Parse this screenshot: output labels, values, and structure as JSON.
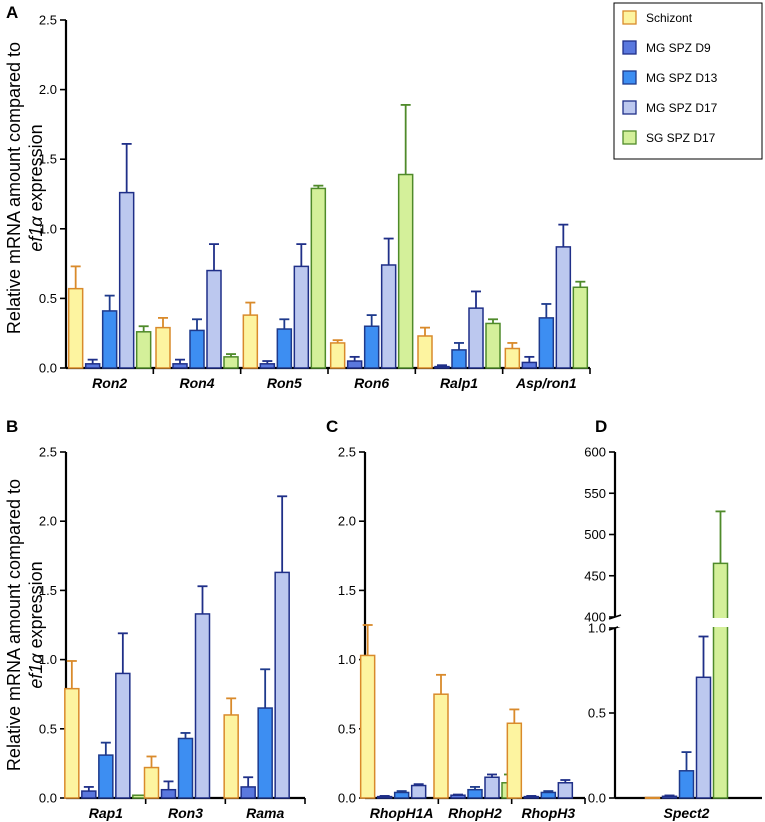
{
  "figure": {
    "ylabel_line1": "Relative mRNA amount compared to",
    "ylabel_line2_italic": "ef1α",
    "ylabel_line2_rest": " expression"
  },
  "legend": [
    {
      "name": "Schizont",
      "fill": "#fdf4a0",
      "stroke": "#d98a2b"
    },
    {
      "name": "MG SPZ D9",
      "fill": "#5a78de",
      "stroke": "#1f2f88"
    },
    {
      "name": "MG SPZ D13",
      "fill": "#3d8ef2",
      "stroke": "#1e3a8c"
    },
    {
      "name": "MG SPZ D17",
      "fill": "#bcc8ef",
      "stroke": "#1f2f88"
    },
    {
      "name": "SG SPZ D17",
      "fill": "#d4f09a",
      "stroke": "#4f8a2a"
    }
  ],
  "chart_data": [
    {
      "panel": "A",
      "type": "bar",
      "categories": [
        "Ron2",
        "Ron4",
        "Ron5",
        "Ron6",
        "Ralp1",
        "Asp/ron1"
      ],
      "ylim": [
        0,
        2.5
      ],
      "yticks": [
        "0.0",
        "0.5",
        "1.0",
        "1.5",
        "2.0",
        "2.5"
      ],
      "series": [
        {
          "name": "Schizont",
          "values": [
            0.57,
            0.29,
            0.38,
            0.18,
            0.23,
            0.14
          ],
          "errors": [
            0.16,
            0.07,
            0.09,
            0.02,
            0.06,
            0.04
          ]
        },
        {
          "name": "MG SPZ D9",
          "values": [
            0.03,
            0.03,
            0.03,
            0.05,
            0.01,
            0.04
          ],
          "errors": [
            0.03,
            0.03,
            0.02,
            0.03,
            0.01,
            0.04
          ]
        },
        {
          "name": "MG SPZ D13",
          "values": [
            0.41,
            0.27,
            0.28,
            0.3,
            0.13,
            0.36
          ],
          "errors": [
            0.11,
            0.08,
            0.07,
            0.08,
            0.05,
            0.1
          ]
        },
        {
          "name": "MG SPZ D17",
          "values": [
            1.26,
            0.7,
            0.73,
            0.74,
            0.43,
            0.87
          ],
          "errors": [
            0.35,
            0.19,
            0.16,
            0.19,
            0.12,
            0.16
          ]
        },
        {
          "name": "SG SPZ D17",
          "values": [
            0.26,
            0.08,
            1.29,
            1.39,
            0.32,
            0.58
          ],
          "errors": [
            0.04,
            0.02,
            0.02,
            0.5,
            0.03,
            0.04
          ]
        }
      ]
    },
    {
      "panel": "B",
      "type": "bar",
      "categories": [
        "Rap1",
        "Ron3",
        "Rama"
      ],
      "ylim": [
        0,
        2.5
      ],
      "yticks": [
        "0.0",
        "0.5",
        "1.0",
        "1.5",
        "2.0",
        "2.5"
      ],
      "series": [
        {
          "name": "Schizont",
          "values": [
            0.79,
            0.22,
            0.6
          ],
          "errors": [
            0.2,
            0.08,
            0.12
          ]
        },
        {
          "name": "MG SPZ D9",
          "values": [
            0.05,
            0.06,
            0.08
          ],
          "errors": [
            0.03,
            0.06,
            0.07
          ]
        },
        {
          "name": "MG SPZ D13",
          "values": [
            0.31,
            0.43,
            0.65
          ],
          "errors": [
            0.09,
            0.04,
            0.28
          ]
        },
        {
          "name": "MG SPZ D17",
          "values": [
            0.9,
            1.33,
            1.63
          ],
          "errors": [
            0.29,
            0.2,
            0.55
          ]
        },
        {
          "name": "SG SPZ D17",
          "values": [
            0.02,
            null,
            null
          ],
          "errors": [
            0,
            null,
            null
          ]
        }
      ]
    },
    {
      "panel": "C",
      "type": "bar",
      "categories": [
        "RhopH1A",
        "RhopH2",
        "RhopH3"
      ],
      "ylim": [
        0,
        2.5
      ],
      "yticks": [
        "0.0",
        "0.5",
        "1.0",
        "1.5",
        "2.0",
        "2.5"
      ],
      "series": [
        {
          "name": "Schizont",
          "values": [
            1.03,
            0.75,
            0.54
          ],
          "errors": [
            0.22,
            0.14,
            0.1
          ]
        },
        {
          "name": "MG SPZ D9",
          "values": [
            0.01,
            0.02,
            0.01
          ],
          "errors": [
            0.005,
            0.005,
            0.005
          ]
        },
        {
          "name": "MG SPZ D13",
          "values": [
            0.04,
            0.06,
            0.04
          ],
          "errors": [
            0.01,
            0.02,
            0.01
          ]
        },
        {
          "name": "MG SPZ D17",
          "values": [
            0.09,
            0.15,
            0.11
          ],
          "errors": [
            0.01,
            0.02,
            0.02
          ]
        },
        {
          "name": "SG SPZ D17",
          "values": [
            null,
            0.11,
            null
          ],
          "errors": [
            null,
            0.06,
            null
          ]
        }
      ]
    },
    {
      "panel": "D",
      "type": "bar",
      "categories": [
        "Spect2"
      ],
      "lower_ylim": [
        0,
        1.0
      ],
      "lower_yticks": [
        "0.0",
        "0.5",
        "1.0"
      ],
      "upper_ylim": [
        400,
        600
      ],
      "upper_yticks": [
        "400",
        "450",
        "500",
        "550",
        "600"
      ],
      "series": [
        {
          "name": "Schizont",
          "values": [
            0.003
          ],
          "errors": [
            0
          ]
        },
        {
          "name": "MG SPZ D9",
          "values": [
            0.01
          ],
          "errors": [
            0.005
          ]
        },
        {
          "name": "MG SPZ D13",
          "values": [
            0.16
          ],
          "errors": [
            0.11
          ]
        },
        {
          "name": "MG SPZ D17",
          "values": [
            0.71
          ],
          "errors": [
            0.24
          ]
        },
        {
          "name": "SG SPZ D17",
          "values": [
            465
          ],
          "errors": [
            63
          ]
        }
      ]
    }
  ]
}
